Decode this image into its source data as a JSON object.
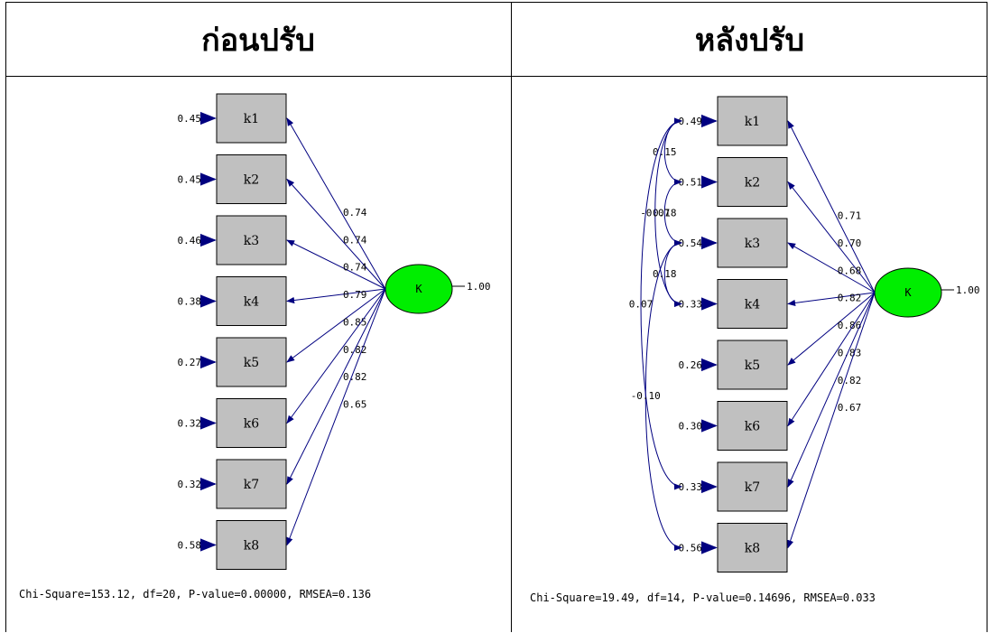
{
  "headers": {
    "before": "ก่อนปรับ",
    "after": "หลังปรับ"
  },
  "latent_label": "K",
  "latent_variance": "1.00",
  "before": {
    "indicators": [
      {
        "label": "k1",
        "error": "0.45",
        "loading": "0.74"
      },
      {
        "label": "k2",
        "error": "0.45",
        "loading": "0.74"
      },
      {
        "label": "k3",
        "error": "0.46",
        "loading": "0.74"
      },
      {
        "label": "k4",
        "error": "0.38",
        "loading": "0.79"
      },
      {
        "label": "k5",
        "error": "0.27",
        "loading": "0.85"
      },
      {
        "label": "k6",
        "error": "0.32",
        "loading": "0.82"
      },
      {
        "label": "k7",
        "error": "0.32",
        "loading": "0.82"
      },
      {
        "label": "k8",
        "error": "0.58",
        "loading": "0.65"
      }
    ],
    "fit": "Chi-Square=153.12, df=20, P-value=0.00000, RMSEA=0.136"
  },
  "after": {
    "indicators": [
      {
        "label": "k1",
        "error": "0.49",
        "loading": "0.71"
      },
      {
        "label": "k2",
        "error": "0.51",
        "loading": "0.70"
      },
      {
        "label": "k3",
        "error": "0.54",
        "loading": "0.68"
      },
      {
        "label": "k4",
        "error": "0.33",
        "loading": "0.82"
      },
      {
        "label": "k5",
        "error": "0.26",
        "loading": "0.86"
      },
      {
        "label": "k6",
        "error": "0.30",
        "loading": "0.83"
      },
      {
        "label": "k7",
        "error": "0.33",
        "loading": "0.82"
      },
      {
        "label": "k8",
        "error": "0.56",
        "loading": "0.67"
      }
    ],
    "covariances": [
      {
        "a": 0,
        "b": 1,
        "value": "0.15"
      },
      {
        "a": 1,
        "b": 2,
        "value": "0.18"
      },
      {
        "a": 0,
        "b": 3,
        "value": "-0.07"
      },
      {
        "a": 2,
        "b": 3,
        "value": "0.18"
      },
      {
        "a": 0,
        "b": 6,
        "value": "0.07"
      },
      {
        "a": 2,
        "b": 7,
        "value": "-0.10"
      }
    ],
    "fit": "Chi-Square=19.49, df=14, P-value=0.14696, RMSEA=0.033"
  },
  "colors": {
    "box_fill": "#c0c0c0",
    "latent_fill": "#00ee00",
    "path": "#000080",
    "text": "#000000"
  }
}
